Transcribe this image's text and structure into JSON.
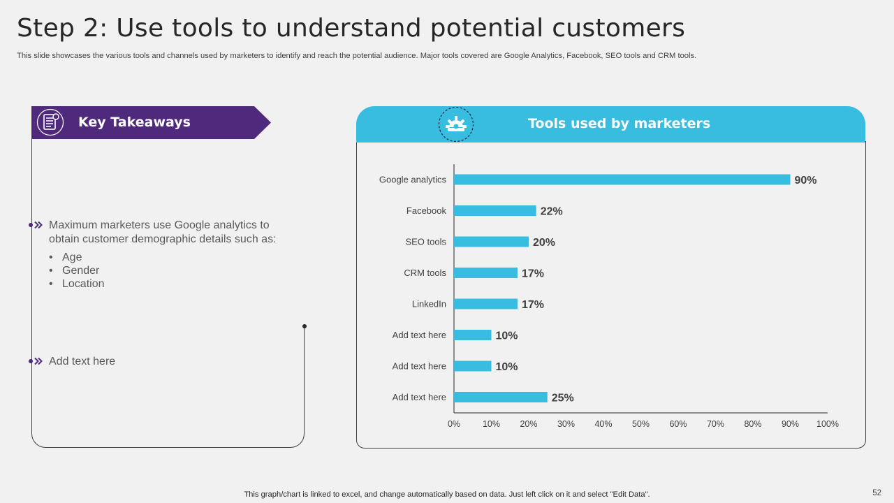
{
  "slide": {
    "title": "Step 2: Use tools to understand potential customers",
    "subtitle": "This slide showcases the various tools and channels used by marketers to identify and reach the potential audience. Major tools covered are Google Analytics, Facebook, SEO tools and CRM tools.",
    "footer": "This graph/chart is linked to excel, and change automatically based on data. Just left click on it and select \"Edit Data\".",
    "page_number": "52"
  },
  "colors": {
    "purple": "#4f2a7c",
    "cyan": "#38bde0",
    "bar": "#38bde0"
  },
  "takeaways": {
    "title": "Key Takeaways",
    "icon": "document-list-icon",
    "point1": "Maximum marketers use Google analytics to obtain customer demographic details such as:",
    "sub_items": [
      "Age",
      "Gender",
      "Location"
    ],
    "point2": "Add text here"
  },
  "tools_panel": {
    "title": "Tools used by marketers",
    "icon": "gear-icon"
  },
  "chart_data": {
    "type": "bar",
    "orientation": "horizontal",
    "title": "Tools used by marketers",
    "categories": [
      "Google analytics",
      "Facebook",
      "SEO tools",
      "CRM tools",
      "LinkedIn",
      "Add text here",
      "Add text here",
      "Add text here"
    ],
    "values": [
      90,
      22,
      20,
      17,
      17,
      10,
      10,
      25
    ],
    "value_labels": [
      "90%",
      "22%",
      "20%",
      "17%",
      "17%",
      "10%",
      "10%",
      "25%"
    ],
    "xlim": [
      0,
      100
    ],
    "xticks": [
      "0%",
      "10%",
      "20%",
      "30%",
      "40%",
      "50%",
      "60%",
      "70%",
      "80%",
      "90%",
      "100%"
    ],
    "xlabel": "",
    "ylabel": "",
    "grid": false,
    "legend": "none"
  }
}
